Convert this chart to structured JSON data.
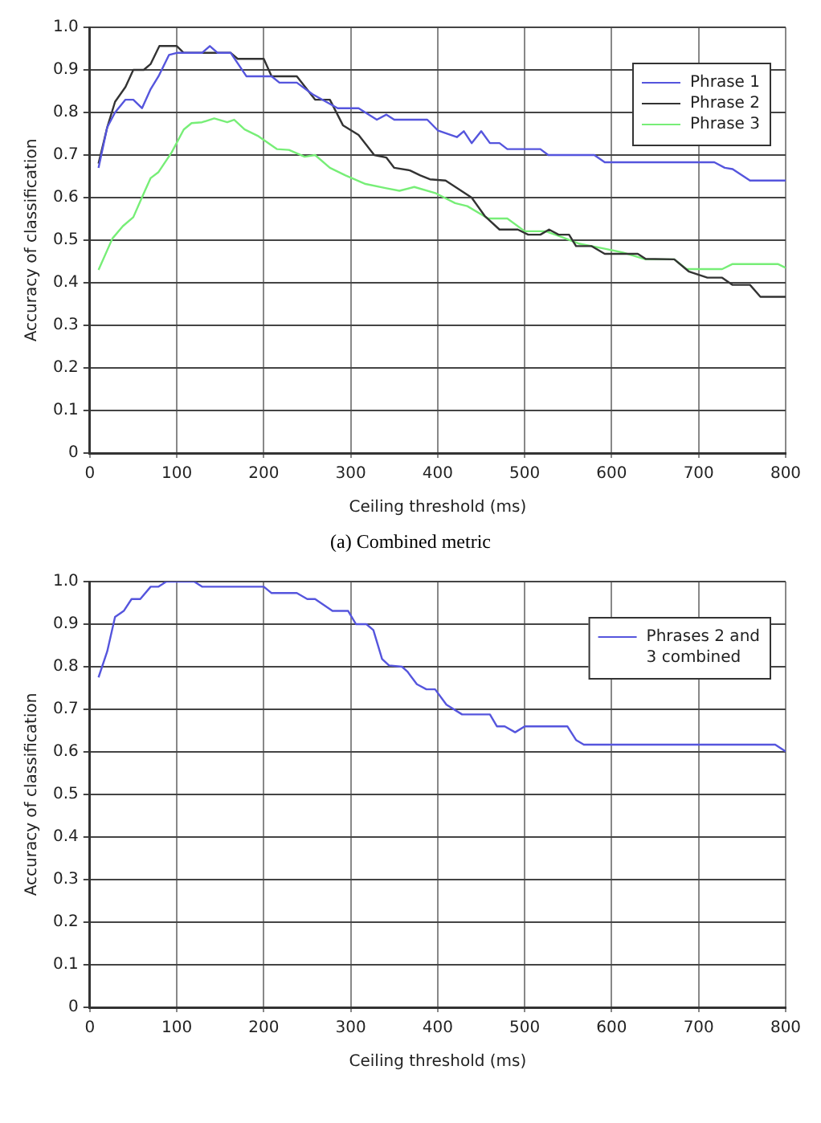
{
  "chart_data": [
    {
      "type": "line",
      "xlabel": "Ceiling threshold (ms)",
      "ylabel": "Accuracy of classification",
      "annotations": [
        "(a)  Combined metric"
      ],
      "xlim": [
        0,
        800
      ],
      "ylim": [
        0,
        1
      ],
      "xticks": [
        0,
        100,
        200,
        300,
        400,
        500,
        600,
        700,
        800
      ],
      "yticks": [
        0,
        0.1,
        0.2,
        0.3,
        0.4,
        0.5,
        0.6,
        0.7,
        0.8,
        0.9,
        {
          "value": 1,
          "label": "1.0"
        }
      ],
      "grid": true,
      "legend": "top right",
      "marker": "none",
      "series": [
        {
          "name": "Phrase 1",
          "color": "#5555dd",
          "x": [
            10,
            20,
            29,
            41,
            50,
            60,
            70,
            79,
            91,
            100,
            129,
            138,
            147,
            162,
            180,
            209,
            218,
            238,
            256,
            285,
            309,
            330,
            341,
            350,
            388,
            400,
            422,
            430,
            439,
            450,
            460,
            471,
            480,
            518,
            527,
            580,
            592,
            718,
            730,
            739,
            759,
            800
          ],
          "values": [
            0.67,
            0.765,
            0.8,
            0.83,
            0.83,
            0.81,
            0.855,
            0.885,
            0.935,
            0.94,
            0.94,
            0.956,
            0.94,
            0.94,
            0.885,
            0.885,
            0.87,
            0.87,
            0.843,
            0.81,
            0.81,
            0.783,
            0.795,
            0.783,
            0.783,
            0.758,
            0.742,
            0.756,
            0.728,
            0.756,
            0.728,
            0.728,
            0.714,
            0.714,
            0.7,
            0.7,
            0.683,
            0.683,
            0.67,
            0.667,
            0.64,
            0.64
          ]
        },
        {
          "name": "Phrase 2",
          "color": "#333333",
          "x": [
            10,
            20,
            29,
            41,
            50,
            62,
            70,
            80,
            100,
            108,
            162,
            170,
            200,
            209,
            238,
            259,
            276,
            291,
            309,
            327,
            341,
            350,
            368,
            380,
            391,
            409,
            439,
            454,
            471,
            492,
            504,
            518,
            528,
            539,
            551,
            559,
            577,
            592,
            630,
            639,
            672,
            689,
            710,
            727,
            739,
            759,
            771,
            800
          ],
          "values": [
            0.68,
            0.765,
            0.825,
            0.86,
            0.9,
            0.9,
            0.914,
            0.956,
            0.956,
            0.94,
            0.94,
            0.926,
            0.926,
            0.885,
            0.885,
            0.83,
            0.83,
            0.77,
            0.747,
            0.7,
            0.694,
            0.67,
            0.664,
            0.652,
            0.643,
            0.64,
            0.6,
            0.557,
            0.525,
            0.525,
            0.513,
            0.513,
            0.525,
            0.513,
            0.513,
            0.486,
            0.486,
            0.468,
            0.468,
            0.456,
            0.455,
            0.426,
            0.412,
            0.412,
            0.395,
            0.395,
            0.367,
            0.367
          ]
        },
        {
          "name": "Phrase 3",
          "color": "#77ee77",
          "x": [
            10,
            26,
            38,
            50,
            62,
            70,
            79,
            94,
            108,
            117,
            129,
            143,
            158,
            166,
            178,
            194,
            215,
            229,
            247,
            259,
            276,
            294,
            317,
            341,
            356,
            373,
            398,
            420,
            434,
            458,
            480,
            500,
            524,
            539,
            562,
            592,
            613,
            639,
            672,
            686,
            727,
            739,
            791,
            800
          ],
          "values": [
            0.43,
            0.504,
            0.533,
            0.554,
            0.61,
            0.646,
            0.66,
            0.706,
            0.76,
            0.775,
            0.777,
            0.786,
            0.777,
            0.783,
            0.76,
            0.744,
            0.714,
            0.712,
            0.696,
            0.7,
            0.67,
            0.652,
            0.632,
            0.622,
            0.616,
            0.625,
            0.61,
            0.587,
            0.58,
            0.551,
            0.551,
            0.521,
            0.521,
            0.51,
            0.492,
            0.48,
            0.471,
            0.455,
            0.455,
            0.432,
            0.432,
            0.444,
            0.444,
            0.435
          ]
        }
      ]
    },
    {
      "type": "line",
      "xlabel": "Ceiling threshold (ms)",
      "ylabel": "Accuracy of classification",
      "xlim": [
        0,
        800
      ],
      "ylim": [
        0,
        1
      ],
      "xticks": [
        0,
        100,
        200,
        300,
        400,
        500,
        600,
        700,
        800
      ],
      "yticks": [
        0,
        0.1,
        0.2,
        0.3,
        0.4,
        0.5,
        0.6,
        0.7,
        0.8,
        0.9,
        {
          "value": 1,
          "label": "1.0"
        }
      ],
      "grid": true,
      "legend": "top right",
      "marker": "none",
      "series": [
        {
          "name": "Phrases 2 and 3 combined",
          "color": "#5555dd",
          "x": [
            10,
            20,
            29,
            39,
            48,
            58,
            70,
            79,
            88,
            120,
            129,
            200,
            209,
            238,
            250,
            259,
            279,
            297,
            306,
            318,
            326,
            336,
            344,
            359,
            365,
            376,
            387,
            397,
            410,
            428,
            460,
            468,
            477,
            489,
            500,
            549,
            559,
            568,
            788,
            800
          ],
          "values": [
            0.775,
            0.836,
            0.917,
            0.931,
            0.959,
            0.959,
            0.988,
            0.988,
            1,
            1,
            0.988,
            0.988,
            0.973,
            0.973,
            0.959,
            0.959,
            0.931,
            0.931,
            0.9,
            0.9,
            0.886,
            0.818,
            0.803,
            0.8,
            0.789,
            0.759,
            0.747,
            0.747,
            0.711,
            0.688,
            0.688,
            0.66,
            0.66,
            0.646,
            0.66,
            0.66,
            0.628,
            0.617,
            0.617,
            0.601
          ]
        }
      ]
    }
  ]
}
